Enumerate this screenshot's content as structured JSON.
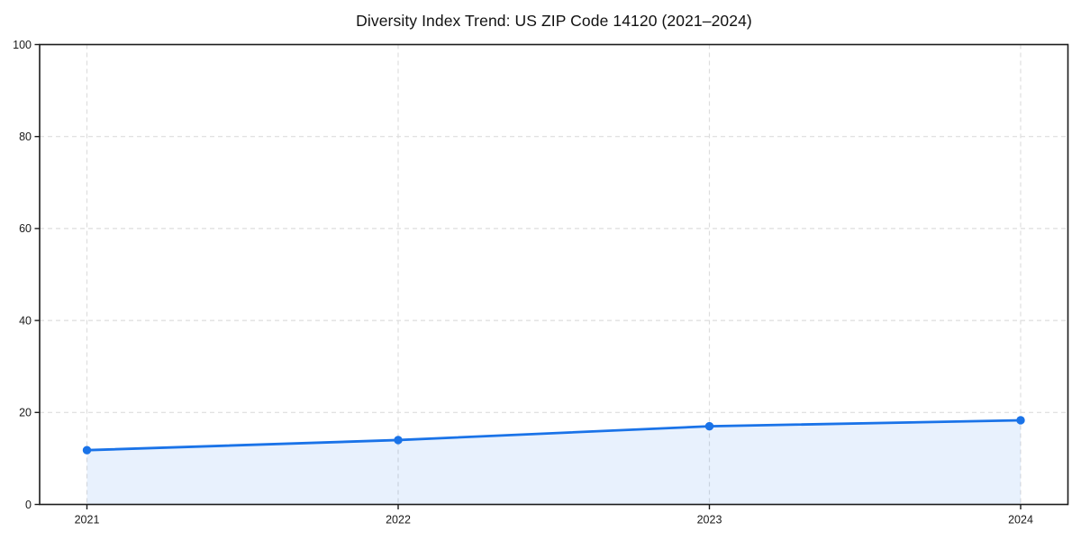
{
  "chart_data": {
    "type": "line",
    "title": "Diversity Index Trend: US ZIP Code 14120 (2021–2024)",
    "categories": [
      "2021",
      "2022",
      "2023",
      "2024"
    ],
    "series": [
      {
        "name": "Diversity Index",
        "values": [
          11.8,
          14.0,
          17.0,
          18.3
        ]
      }
    ],
    "xlabel": "",
    "ylabel": "",
    "ylim": [
      0,
      100
    ],
    "yticks": [
      0,
      20,
      40,
      60,
      80,
      100
    ],
    "ytick_labels": [
      "0",
      "20",
      "40",
      "60",
      "80",
      "100"
    ],
    "grid": "on",
    "grid_style": "dashed",
    "legend": "none",
    "colors": {
      "line": "#1a73e8",
      "marker": "#1a73e8",
      "fill": "rgba(26,115,232,0.10)",
      "grid": "#dedede",
      "spine": "#1c1c1c",
      "tick_label": "#1a1a1a",
      "title": "#111111",
      "background": "#ffffff"
    }
  }
}
